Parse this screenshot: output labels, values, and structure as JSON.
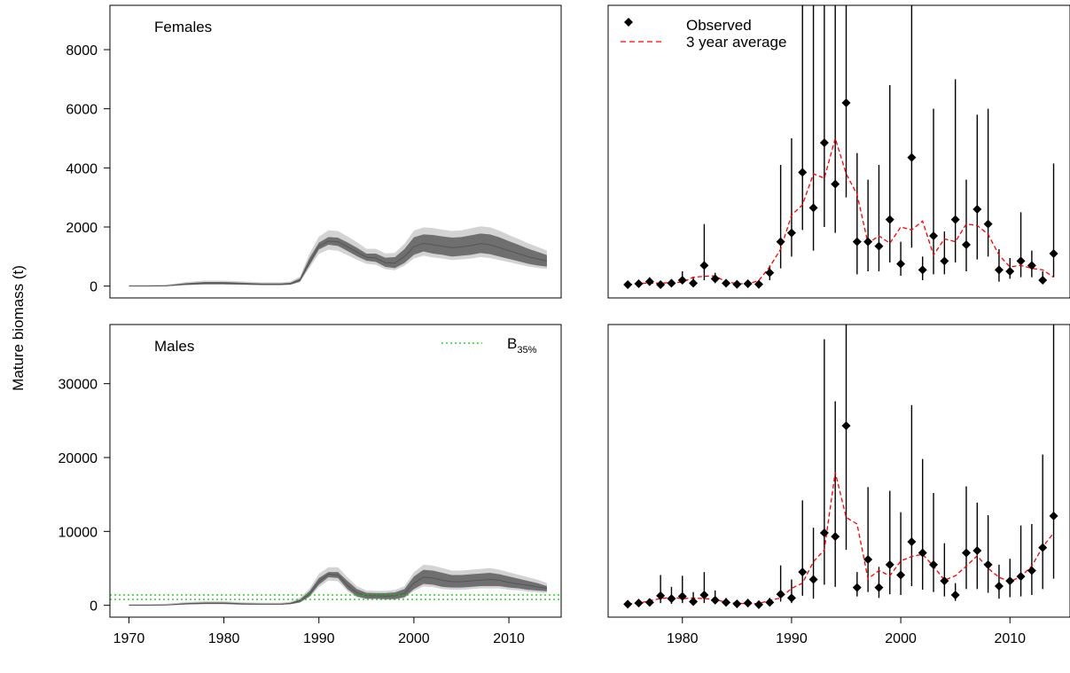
{
  "ylabel": "Mature biomass (t)",
  "colors": {
    "band_outer": "#d3d3d3",
    "band_inner": "#6f6f6f",
    "observed": "#000000",
    "avg_line": "#ff0000",
    "b35": "#00cc00",
    "axis": "#000000"
  },
  "chart_data": [
    {
      "panel": "females-model",
      "type": "area",
      "title": "Females",
      "xlim": [
        1968,
        2015.5
      ],
      "ylim": [
        -400,
        9500
      ],
      "yticks": [
        "0",
        "2000",
        "4000",
        "6000",
        "8000"
      ],
      "ytick_values": [
        0,
        2000,
        4000,
        6000,
        8000
      ],
      "x": [
        1970,
        1972,
        1974,
        1975,
        1976,
        1978,
        1980,
        1982,
        1984,
        1986,
        1987,
        1988,
        1989,
        1990,
        1991,
        1992,
        1993,
        1994,
        1995,
        1996,
        1997,
        1998,
        1999,
        2000,
        2001,
        2002,
        2003,
        2004,
        2005,
        2006,
        2007,
        2008,
        2009,
        2010,
        2011,
        2012,
        2013,
        2014
      ],
      "median": [
        0,
        0,
        10,
        40,
        70,
        100,
        100,
        80,
        60,
        60,
        80,
        200,
        800,
        1350,
        1520,
        1500,
        1330,
        1150,
        980,
        950,
        790,
        780,
        1000,
        1330,
        1450,
        1400,
        1350,
        1300,
        1330,
        1370,
        1440,
        1400,
        1300,
        1200,
        1100,
        1000,
        920,
        850
      ],
      "upper": [
        5,
        10,
        25,
        60,
        100,
        140,
        140,
        115,
        90,
        90,
        115,
        260,
        950,
        1470,
        1660,
        1640,
        1480,
        1300,
        1100,
        1100,
        960,
        980,
        1250,
        1650,
        1750,
        1730,
        1680,
        1640,
        1660,
        1720,
        1780,
        1750,
        1650,
        1520,
        1400,
        1270,
        1160,
        1050
      ],
      "lower": [
        0,
        0,
        0,
        20,
        40,
        60,
        60,
        50,
        35,
        35,
        50,
        150,
        700,
        1240,
        1400,
        1360,
        1190,
        1010,
        860,
        820,
        650,
        610,
        780,
        1060,
        1170,
        1100,
        1060,
        1000,
        1030,
        1060,
        1120,
        1080,
        1000,
        920,
        840,
        760,
        700,
        660
      ]
    },
    {
      "panel": "males-model",
      "type": "area",
      "title": "Males",
      "legend": "B35%",
      "legend_main": "B",
      "legend_sub": "35%",
      "b35_lines": [
        800,
        1400
      ],
      "xlim": [
        1968,
        2015.5
      ],
      "ylim": [
        -1600,
        38000
      ],
      "yticks": [
        "0",
        "10000",
        "20000",
        "30000"
      ],
      "ytick_values": [
        0,
        10000,
        20000,
        30000
      ],
      "xticks": [
        "1970",
        "1980",
        "1990",
        "2000",
        "2010"
      ],
      "xtick_values": [
        1970,
        1980,
        1990,
        2000,
        2010
      ],
      "x": [
        1970,
        1972,
        1974,
        1975,
        1976,
        1978,
        1980,
        1982,
        1984,
        1986,
        1987,
        1988,
        1989,
        1990,
        1991,
        1992,
        1993,
        1994,
        1995,
        1996,
        1997,
        1998,
        1999,
        2000,
        2001,
        2002,
        2003,
        2004,
        2005,
        2006,
        2007,
        2008,
        2009,
        2010,
        2011,
        2012,
        2013,
        2014
      ],
      "median": [
        0,
        0,
        50,
        120,
        200,
        280,
        280,
        180,
        150,
        150,
        250,
        600,
        1500,
        3200,
        4200,
        4100,
        2700,
        1700,
        1300,
        1300,
        1250,
        1300,
        1600,
        3000,
        3800,
        3700,
        3400,
        3200,
        3200,
        3300,
        3400,
        3500,
        3400,
        3100,
        2900,
        2700,
        2500,
        2300
      ],
      "upper": [
        50,
        50,
        100,
        200,
        300,
        400,
        400,
        280,
        220,
        220,
        350,
        800,
        1900,
        3700,
        4500,
        4500,
        3300,
        2200,
        1700,
        1650,
        1650,
        1750,
        2200,
        3900,
        4800,
        4700,
        4400,
        4100,
        4100,
        4200,
        4300,
        4400,
        4200,
        3900,
        3600,
        3300,
        3000,
        2600
      ],
      "lower": [
        0,
        0,
        10,
        60,
        120,
        180,
        180,
        100,
        90,
        90,
        160,
        400,
        1200,
        2800,
        3800,
        3700,
        2200,
        1200,
        900,
        900,
        850,
        850,
        1100,
        2200,
        2900,
        2800,
        2500,
        2400,
        2400,
        2500,
        2600,
        2600,
        2600,
        2400,
        2300,
        2100,
        2000,
        1900
      ]
    },
    {
      "panel": "females-observed",
      "type": "scatter",
      "legend": [
        "Observed",
        "3 year average"
      ],
      "xlim": [
        1973.2,
        2015.5
      ],
      "ylim": [
        -400,
        9500
      ],
      "x": [
        1975,
        1976,
        1977,
        1978,
        1979,
        1980,
        1981,
        1982,
        1983,
        1984,
        1985,
        1986,
        1987,
        1988,
        1989,
        1990,
        1991,
        1992,
        1993,
        1994,
        1995,
        1996,
        1997,
        1998,
        1999,
        2000,
        2001,
        2002,
        2003,
        2004,
        2005,
        2006,
        2007,
        2008,
        2009,
        2010,
        2011,
        2012,
        2013,
        2014
      ],
      "values": [
        50,
        80,
        150,
        50,
        100,
        200,
        100,
        700,
        250,
        100,
        60,
        80,
        60,
        450,
        1500,
        1800,
        3850,
        2650,
        4850,
        3450,
        6200,
        1500,
        1500,
        1350,
        2250,
        750,
        4350,
        550,
        1700,
        850,
        2250,
        1400,
        2600,
        2100,
        550,
        500,
        850,
        700,
        200,
        1100
      ],
      "upper": [
        100,
        160,
        300,
        130,
        200,
        500,
        300,
        2100,
        450,
        200,
        150,
        200,
        150,
        700,
        4100,
        5000,
        9500,
        9500,
        9500,
        9500,
        9500,
        4500,
        3600,
        4100,
        6800,
        1500,
        9500,
        1000,
        6000,
        1850,
        7000,
        3600,
        5800,
        6000,
        1250,
        950,
        2500,
        1200,
        500,
        4150
      ],
      "lower": [
        20,
        40,
        50,
        10,
        40,
        100,
        50,
        200,
        100,
        40,
        20,
        40,
        20,
        200,
        600,
        1000,
        1900,
        1200,
        2000,
        1800,
        3000,
        400,
        500,
        500,
        800,
        350,
        1300,
        200,
        400,
        400,
        800,
        500,
        900,
        1000,
        150,
        250,
        300,
        300,
        100,
        300
      ],
      "avg_x": [
        1975,
        1976,
        1977,
        1978,
        1979,
        1980,
        1981,
        1982,
        1983,
        1984,
        1985,
        1986,
        1987,
        1988,
        1989,
        1990,
        1991,
        1992,
        1993,
        1994,
        1995,
        1996,
        1997,
        1998,
        1999,
        2000,
        2001,
        2002,
        2003,
        2004,
        2005,
        2006,
        2007,
        2008,
        2009,
        2010,
        2011,
        2012,
        2013,
        2014
      ],
      "avg": [
        50,
        90,
        100,
        100,
        120,
        130,
        300,
        330,
        350,
        140,
        90,
        70,
        190,
        650,
        1250,
        2400,
        2750,
        3800,
        3650,
        5000,
        3800,
        3100,
        1450,
        1700,
        1450,
        2000,
        1900,
        2200,
        1050,
        1600,
        1500,
        2100,
        2050,
        1750,
        1050,
        650,
        700,
        600,
        550,
        300
      ]
    },
    {
      "panel": "males-observed",
      "type": "scatter",
      "xlim": [
        1973.2,
        2015.5
      ],
      "ylim": [
        -1600,
        38000
      ],
      "xticks": [
        "1980",
        "1990",
        "2000",
        "2010"
      ],
      "xtick_values": [
        1980,
        1990,
        2000,
        2010
      ],
      "x": [
        1975,
        1976,
        1977,
        1978,
        1979,
        1980,
        1981,
        1982,
        1983,
        1984,
        1985,
        1986,
        1987,
        1988,
        1989,
        1990,
        1991,
        1992,
        1993,
        1994,
        1995,
        1996,
        1997,
        1998,
        1999,
        2000,
        2001,
        2002,
        2003,
        2004,
        2005,
        2006,
        2007,
        2008,
        2009,
        2010,
        2011,
        2012,
        2013,
        2014
      ],
      "values": [
        150,
        300,
        400,
        1300,
        900,
        1200,
        500,
        1400,
        700,
        400,
        200,
        300,
        100,
        400,
        1500,
        1000,
        4500,
        3500,
        9800,
        9300,
        24300,
        2400,
        6200,
        2400,
        5500,
        4100,
        8600,
        7100,
        5500,
        3300,
        1400,
        7100,
        7400,
        5500,
        2600,
        3300,
        3900,
        4700,
        7800,
        12100
      ],
      "upper": [
        400,
        600,
        800,
        4100,
        2500,
        4000,
        1800,
        4500,
        2000,
        1000,
        600,
        800,
        300,
        1000,
        5400,
        3500,
        14200,
        10500,
        36000,
        27600,
        38000,
        4500,
        16000,
        5200,
        15500,
        12600,
        27100,
        19800,
        15200,
        8400,
        3000,
        16100,
        13900,
        12200,
        5500,
        6300,
        10800,
        11000,
        20400,
        38000
      ],
      "lower": [
        50,
        80,
        120,
        300,
        200,
        300,
        100,
        300,
        200,
        100,
        50,
        80,
        30,
        100,
        500,
        300,
        1300,
        900,
        2800,
        2500,
        7500,
        1200,
        1800,
        1000,
        1500,
        1400,
        2600,
        2100,
        1800,
        1200,
        600,
        2200,
        2200,
        1700,
        900,
        1100,
        1200,
        1400,
        2200,
        3600
      ],
      "avg_x": [
        1975,
        1976,
        1977,
        1978,
        1979,
        1980,
        1981,
        1982,
        1983,
        1984,
        1985,
        1986,
        1987,
        1988,
        1989,
        1990,
        1991,
        1992,
        1993,
        1994,
        1995,
        1996,
        1997,
        1998,
        1999,
        2000,
        2001,
        2002,
        2003,
        2004,
        2005,
        2006,
        2007,
        2008,
        2009,
        2010,
        2011,
        2012,
        2013,
        2014
      ],
      "avg": [
        200,
        250,
        650,
        900,
        1100,
        900,
        1000,
        900,
        800,
        400,
        300,
        200,
        250,
        650,
        1000,
        2300,
        3000,
        5900,
        7500,
        18000,
        11900,
        11000,
        3600,
        4700,
        4000,
        6000,
        6600,
        6900,
        5300,
        3400,
        4000,
        5300,
        6700,
        5000,
        3800,
        3200,
        3900,
        5300,
        7900,
        9800
      ]
    }
  ]
}
